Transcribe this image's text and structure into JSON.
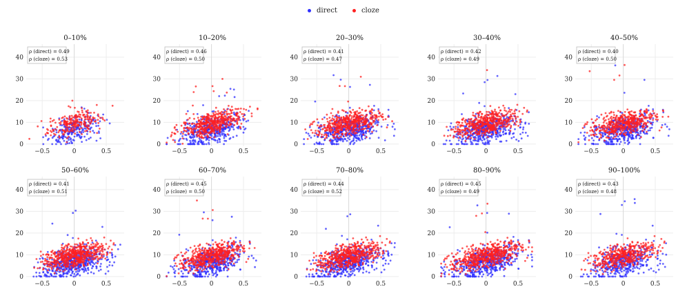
{
  "legend": {
    "direct_label": "direct",
    "cloze_label": "cloze"
  },
  "colors": {
    "direct": "#2f2fff",
    "cloze": "#ff2020",
    "grid": "#ececec",
    "axis_line": "#d8d8d8",
    "box_border": "#bbbbbb"
  },
  "chart_data": {
    "type": "scatter",
    "layout": "2x5 grid",
    "series_names": [
      "direct",
      "cloze"
    ],
    "x_ticks": [
      -0.5,
      0,
      0.5
    ],
    "x_tick_labels": [
      "−0.5",
      "0",
      "0.5"
    ],
    "y_ticks": [
      0,
      10,
      20,
      30,
      40
    ],
    "y_tick_labels": [
      "0",
      "10",
      "20",
      "30",
      "40"
    ],
    "xlim": [
      -0.75,
      0.78
    ],
    "ylim": [
      -1,
      46
    ],
    "annotation_labels": {
      "direct": "ρ (direct)",
      "cloze": "ρ (cloze)"
    },
    "panels": [
      {
        "title": "0–10%",
        "rho_direct": "0.49",
        "rho_cloze": "0.53",
        "n": 230,
        "spread": 0.2,
        "max_y": 20,
        "slope": 7
      },
      {
        "title": "10–20%",
        "rho_direct": "0.46",
        "rho_cloze": "0.50",
        "n": 460,
        "spread": 0.24,
        "max_y": 30,
        "slope": 7
      },
      {
        "title": "20–30%",
        "rho_direct": "0.41",
        "rho_cloze": "0.47",
        "n": 480,
        "spread": 0.25,
        "max_y": 35,
        "slope": 6
      },
      {
        "title": "30–40%",
        "rho_direct": "0.42",
        "rho_cloze": "0.49",
        "n": 480,
        "spread": 0.24,
        "max_y": 39,
        "slope": 6
      },
      {
        "title": "40–50%",
        "rho_direct": "0.40",
        "rho_cloze": "0.50",
        "n": 470,
        "spread": 0.25,
        "max_y": 43,
        "slope": 6
      },
      {
        "title": "50–60%",
        "rho_direct": "0.41",
        "rho_cloze": "0.51",
        "n": 560,
        "spread": 0.23,
        "max_y": 40,
        "slope": 6
      },
      {
        "title": "60–70%",
        "rho_direct": "0.45",
        "rho_cloze": "0.50",
        "n": 520,
        "spread": 0.24,
        "max_y": 35,
        "slope": 7
      },
      {
        "title": "70–80%",
        "rho_direct": "0.44",
        "rho_cloze": "0.52",
        "n": 520,
        "spread": 0.24,
        "max_y": 38,
        "slope": 7
      },
      {
        "title": "80–90%",
        "rho_direct": "0.45",
        "rho_cloze": "0.49",
        "n": 540,
        "spread": 0.27,
        "max_y": 39,
        "slope": 7
      },
      {
        "title": "90–100%",
        "rho_direct": "0.43",
        "rho_cloze": "0.48",
        "n": 430,
        "spread": 0.24,
        "max_y": 45,
        "slope": 7
      }
    ]
  }
}
